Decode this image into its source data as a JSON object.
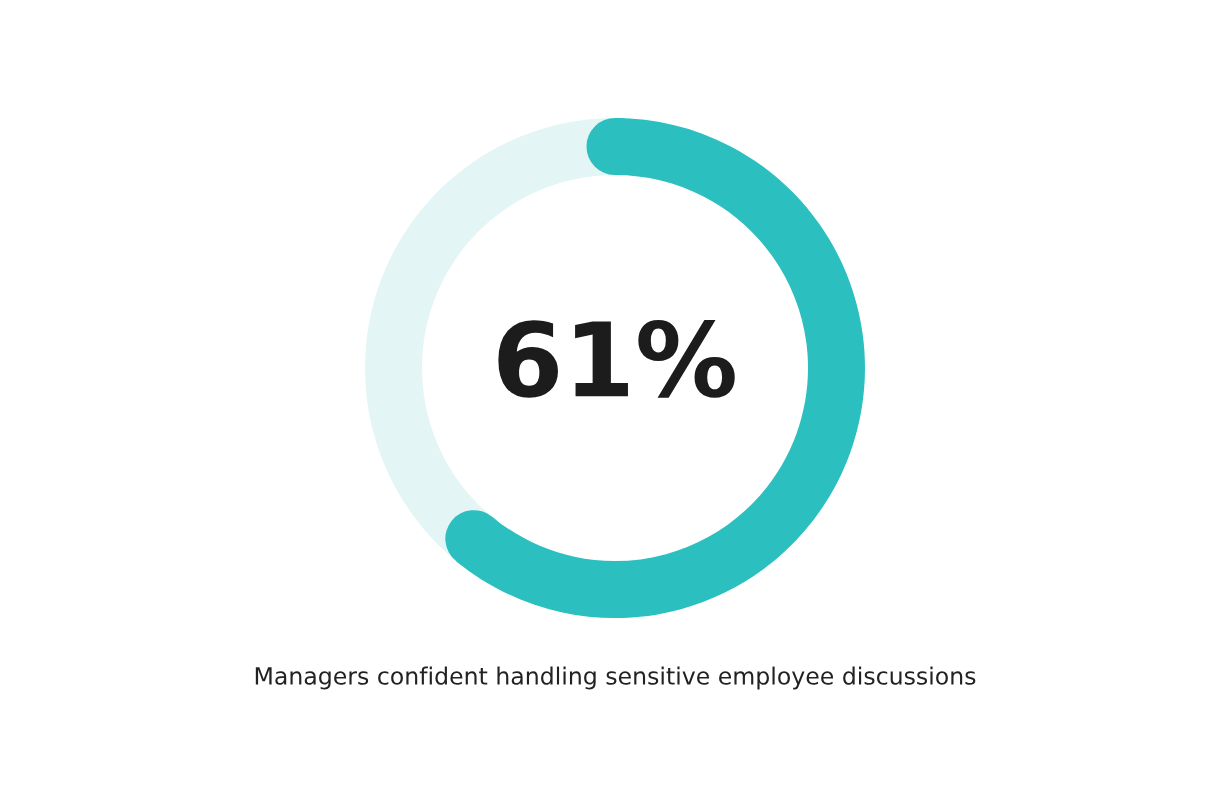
{
  "chart_data": {
    "type": "donut",
    "categories": [
      null,
      null
    ],
    "values": [
      61,
      39
    ],
    "colors": [
      "#2cbfc0",
      "#e3f5f5"
    ],
    "value_labels": [
      "61%",
      null
    ],
    "annotations": [
      "Managers confident handling sensitive employee discussions"
    ]
  }
}
